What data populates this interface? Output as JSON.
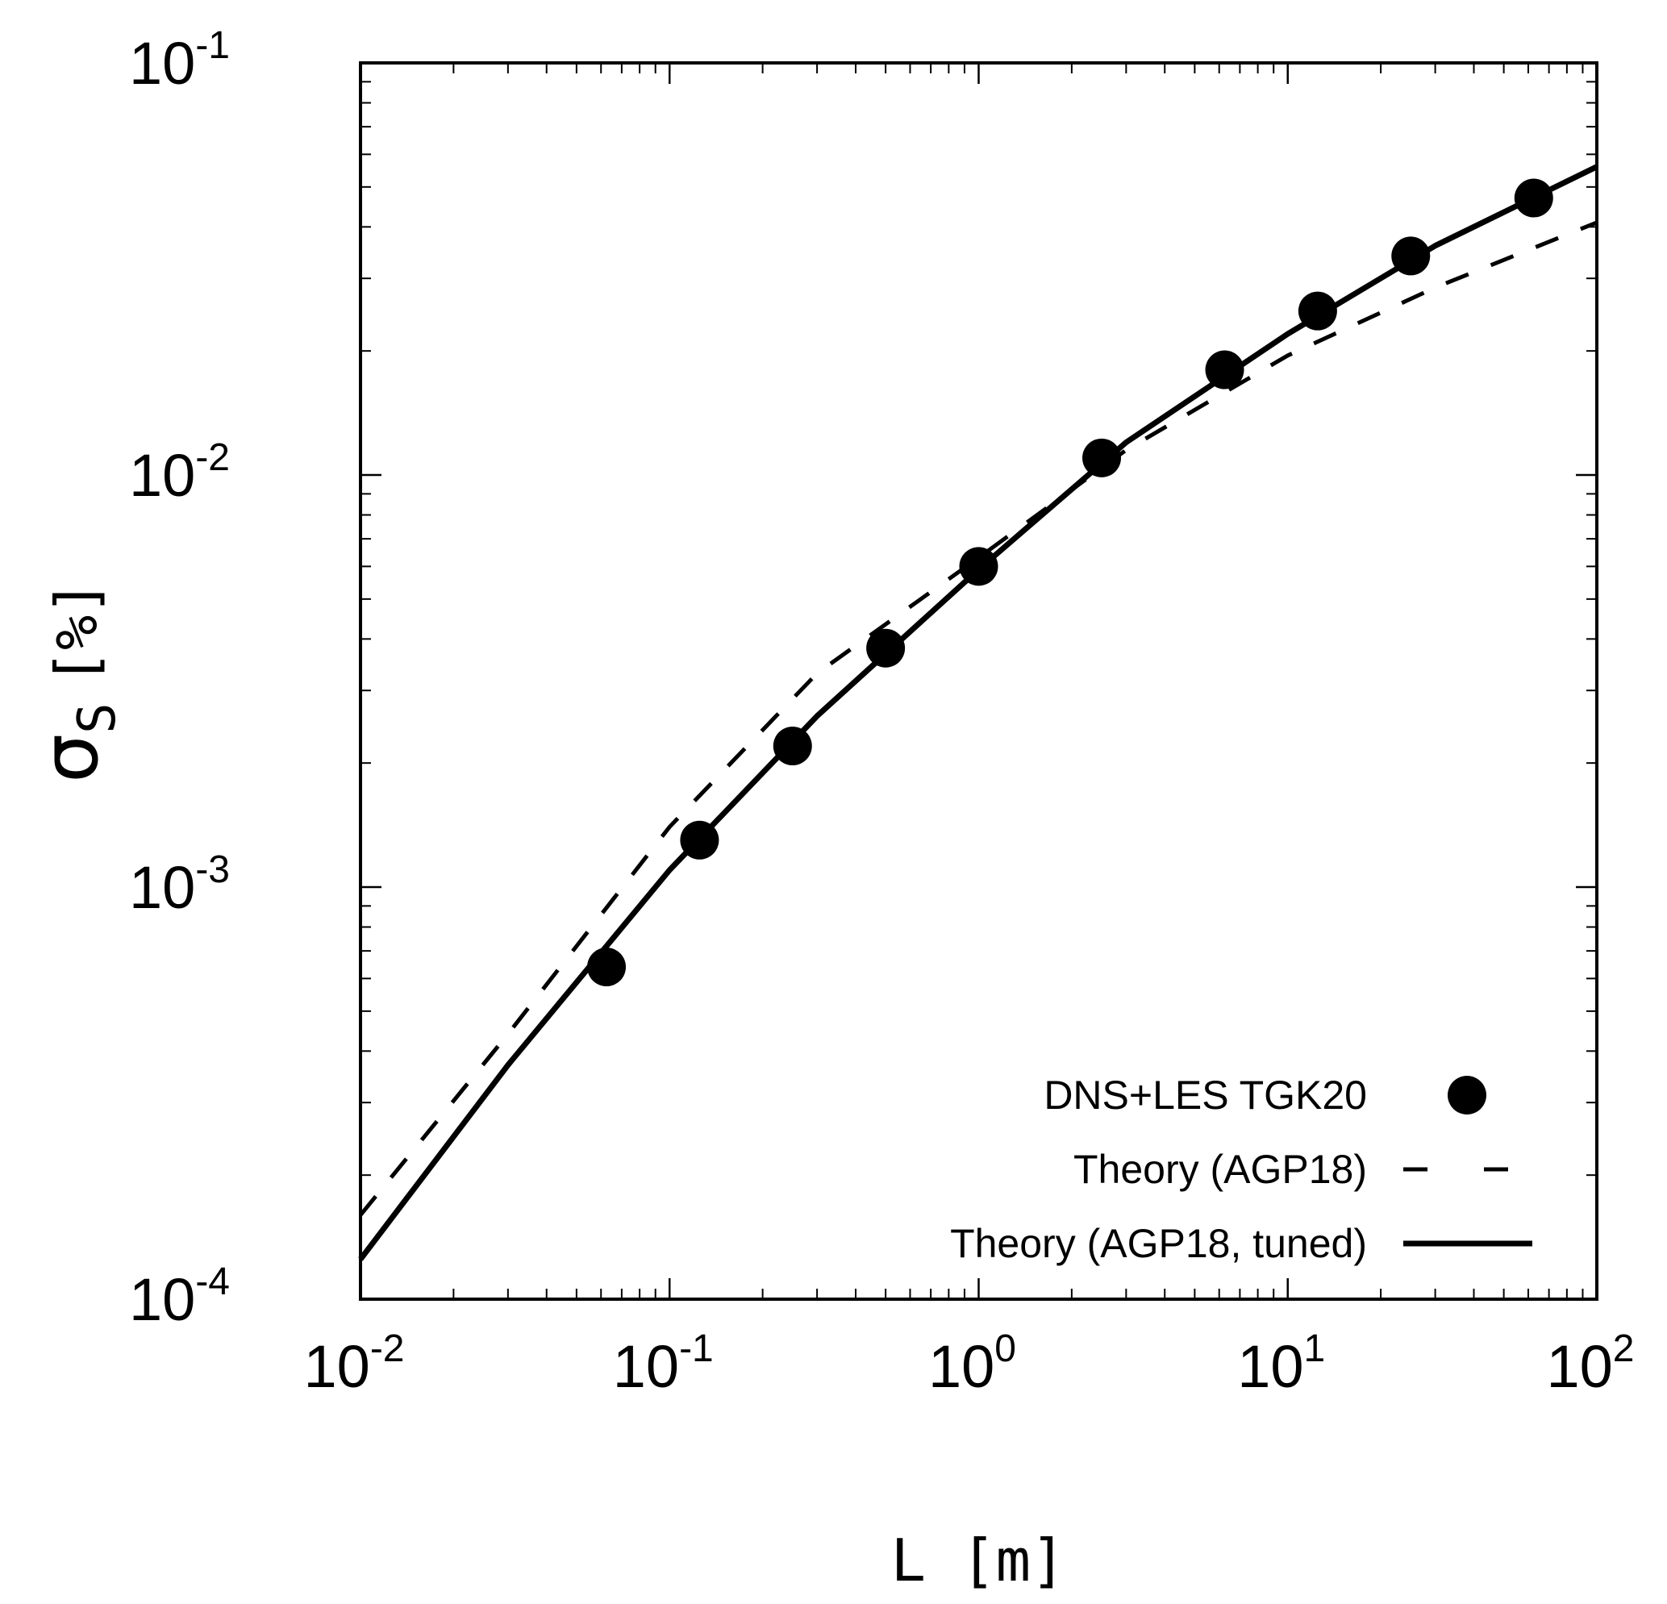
{
  "chart_data": {
    "type": "line",
    "x_scale": "log",
    "y_scale": "log",
    "xlim": [
      0.01,
      100
    ],
    "ylim": [
      0.0001,
      0.1
    ],
    "xlabel": "L [m]",
    "ylabel_main": "σ",
    "ylabel_sub": "S",
    "ylabel_unit": "[%]",
    "x_ticks": [
      {
        "base": "10",
        "exp": "-2",
        "value": 0.01
      },
      {
        "base": "10",
        "exp": "-1",
        "value": 0.1
      },
      {
        "base": "10",
        "exp": "0",
        "value": 1
      },
      {
        "base": "10",
        "exp": "1",
        "value": 10
      },
      {
        "base": "10",
        "exp": "2",
        "value": 100
      }
    ],
    "y_ticks": [
      {
        "base": "10",
        "exp": "-4",
        "value": 0.0001
      },
      {
        "base": "10",
        "exp": "-3",
        "value": 0.001
      },
      {
        "base": "10",
        "exp": "-2",
        "value": 0.01
      },
      {
        "base": "10",
        "exp": "-1",
        "value": 0.1
      }
    ],
    "grid": false,
    "legend_position": "bottom-right",
    "series": [
      {
        "name": "DNS+LES TGK20",
        "style": "markers",
        "x": [
          0.0625,
          0.125,
          0.25,
          0.5,
          1.0,
          2.5,
          6.25,
          12.5,
          25.0,
          62.5
        ],
        "y": [
          0.00064,
          0.0013,
          0.0022,
          0.0038,
          0.006,
          0.011,
          0.018,
          0.025,
          0.034,
          0.047
        ]
      },
      {
        "name": "Theory (AGP18)",
        "style": "dashed",
        "x": [
          0.01,
          0.03,
          0.1,
          0.3,
          1,
          3,
          10,
          30,
          100
        ],
        "y": [
          0.00016,
          0.00044,
          0.0014,
          0.0033,
          0.0063,
          0.0115,
          0.0195,
          0.0285,
          0.041
        ]
      },
      {
        "name": "Theory (AGP18, tuned)",
        "style": "solid",
        "x": [
          0.01,
          0.03,
          0.1,
          0.3,
          1,
          3,
          10,
          30,
          100
        ],
        "y": [
          0.000125,
          0.00037,
          0.0011,
          0.0026,
          0.0059,
          0.012,
          0.022,
          0.036,
          0.056
        ]
      }
    ]
  }
}
